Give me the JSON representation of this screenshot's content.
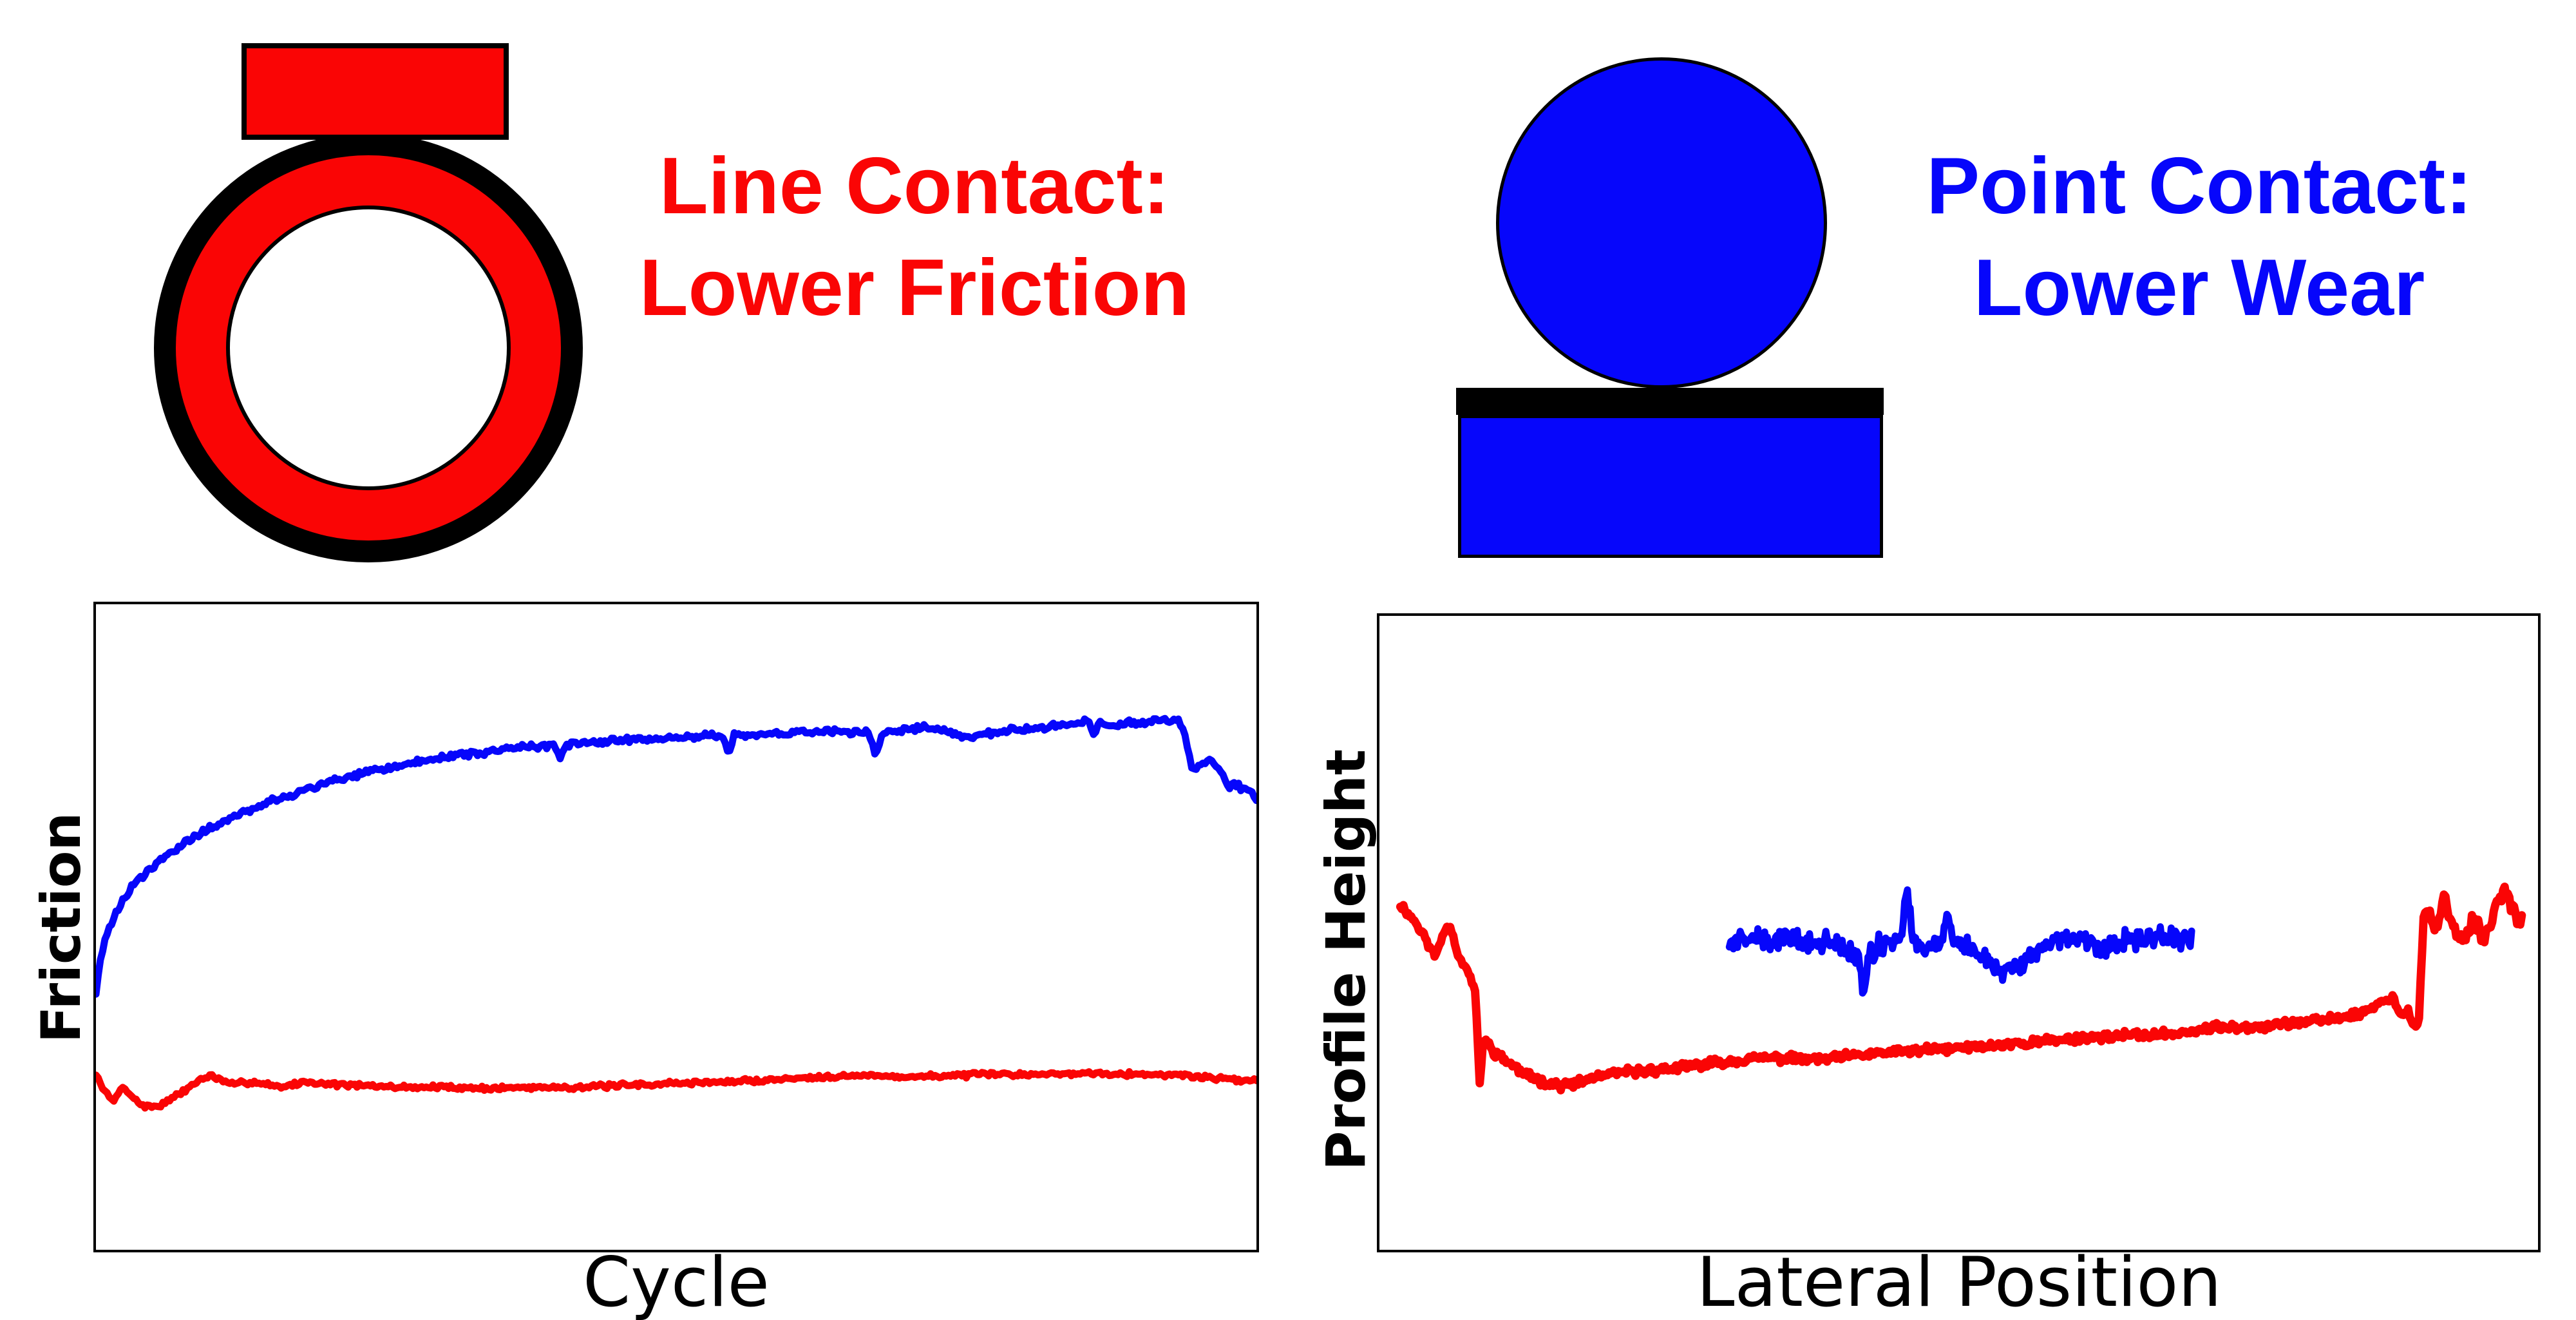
{
  "colors": {
    "red": "#fa0505",
    "blue": "#0606fb",
    "black": "#000000"
  },
  "schematics": {
    "line_contact": {
      "label_line1": "Line Contact:",
      "label_line2": "Lower Friction",
      "shapes": [
        "red-counterface-block",
        "red-ring-with-black-rim",
        "white-ring-bore"
      ]
    },
    "point_contact": {
      "label_line1": "Point Contact:",
      "label_line2": "Lower Wear",
      "shapes": [
        "blue-ball",
        "black-contact-line",
        "blue-counterface-block"
      ]
    }
  },
  "chart_data": [
    {
      "id": "friction-vs-cycle",
      "type": "line",
      "title": "",
      "xlabel": "Cycle",
      "ylabel": "Friction",
      "xlim": [
        0,
        1
      ],
      "ylim": [
        0,
        1
      ],
      "grid": false,
      "ticks": false,
      "legend": null,
      "series": [
        {
          "name": "point-contact-friction",
          "color_key": "blue",
          "stroke_width": 11,
          "samples": 520,
          "noise_amp": 0.006,
          "seed": 42,
          "anchors": [
            [
              0.0,
              0.4
            ],
            [
              0.004,
              0.455
            ],
            [
              0.012,
              0.5
            ],
            [
              0.02,
              0.53
            ],
            [
              0.03,
              0.56
            ],
            [
              0.045,
              0.588
            ],
            [
              0.06,
              0.61
            ],
            [
              0.08,
              0.634
            ],
            [
              0.1,
              0.655
            ],
            [
              0.13,
              0.679
            ],
            [
              0.16,
              0.7
            ],
            [
              0.2,
              0.724
            ],
            [
              0.24,
              0.742
            ],
            [
              0.28,
              0.757
            ],
            [
              0.32,
              0.768
            ],
            [
              0.36,
              0.777
            ],
            [
              0.4,
              0.783
            ],
            [
              0.44,
              0.788
            ],
            [
              0.48,
              0.791
            ],
            [
              0.52,
              0.795
            ],
            [
              0.56,
              0.797
            ],
            [
              0.6,
              0.801
            ],
            [
              0.64,
              0.803
            ],
            [
              0.67,
              0.8
            ],
            [
              0.7,
              0.806
            ],
            [
              0.72,
              0.809
            ],
            [
              0.74,
              0.8
            ],
            [
              0.752,
              0.794
            ],
            [
              0.77,
              0.801
            ],
            [
              0.8,
              0.806
            ],
            [
              0.82,
              0.81
            ],
            [
              0.84,
              0.814
            ],
            [
              0.858,
              0.819
            ],
            [
              0.875,
              0.812
            ],
            [
              0.89,
              0.816
            ],
            [
              0.905,
              0.818
            ],
            [
              0.92,
              0.821
            ],
            [
              0.933,
              0.818
            ],
            [
              0.938,
              0.8
            ],
            [
              0.944,
              0.746
            ],
            [
              0.952,
              0.75
            ],
            [
              0.96,
              0.757
            ],
            [
              0.967,
              0.75
            ],
            [
              0.972,
              0.732
            ],
            [
              0.976,
              0.718
            ],
            [
              0.982,
              0.722
            ],
            [
              0.988,
              0.714
            ],
            [
              0.994,
              0.71
            ],
            [
              1.0,
              0.7
            ]
          ],
          "spikes": [
            {
              "x": 0.4,
              "dv": -0.02,
              "w": 0.006
            },
            {
              "x": 0.545,
              "dv": -0.03,
              "w": 0.005
            },
            {
              "x": 0.672,
              "dv": -0.034,
              "w": 0.006
            },
            {
              "x": 0.86,
              "dv": -0.022,
              "w": 0.004
            }
          ]
        },
        {
          "name": "line-contact-friction",
          "color_key": "red",
          "stroke_width": 11,
          "samples": 520,
          "noise_amp": 0.0045,
          "seed": 7,
          "anchors": [
            [
              0.0,
              0.27
            ],
            [
              0.008,
              0.245
            ],
            [
              0.015,
              0.228
            ],
            [
              0.022,
              0.252
            ],
            [
              0.028,
              0.245
            ],
            [
              0.035,
              0.23
            ],
            [
              0.042,
              0.222
            ],
            [
              0.052,
              0.222
            ],
            [
              0.062,
              0.23
            ],
            [
              0.075,
              0.245
            ],
            [
              0.088,
              0.262
            ],
            [
              0.098,
              0.27
            ],
            [
              0.108,
              0.262
            ],
            [
              0.117,
              0.256
            ],
            [
              0.13,
              0.26
            ],
            [
              0.145,
              0.258
            ],
            [
              0.16,
              0.252
            ],
            [
              0.18,
              0.26
            ],
            [
              0.2,
              0.257
            ],
            [
              0.23,
              0.254
            ],
            [
              0.26,
              0.252
            ],
            [
              0.3,
              0.252
            ],
            [
              0.34,
              0.25
            ],
            [
              0.38,
              0.252
            ],
            [
              0.42,
              0.252
            ],
            [
              0.46,
              0.255
            ],
            [
              0.5,
              0.258
            ],
            [
              0.54,
              0.26
            ],
            [
              0.58,
              0.263
            ],
            [
              0.62,
              0.268
            ],
            [
              0.66,
              0.27
            ],
            [
              0.7,
              0.268
            ],
            [
              0.74,
              0.27
            ],
            [
              0.78,
              0.272
            ],
            [
              0.82,
              0.272
            ],
            [
              0.86,
              0.274
            ],
            [
              0.9,
              0.272
            ],
            [
              0.94,
              0.27
            ],
            [
              0.97,
              0.265
            ],
            [
              1.0,
              0.262
            ]
          ],
          "spikes": []
        }
      ]
    },
    {
      "id": "profile-vs-lateral",
      "type": "line",
      "title": "",
      "xlabel": "Lateral Position",
      "ylabel": "Profile Height",
      "xlim": [
        0,
        1
      ],
      "ylim": [
        0,
        1
      ],
      "grid": false,
      "ticks": false,
      "legend": null,
      "series": [
        {
          "name": "line-contact-wear-profile",
          "color_key": "red",
          "stroke_width": 13,
          "samples": 720,
          "noise_amp": 0.008,
          "noise_segments": [
            {
              "from": 0.0,
              "to": 0.897,
              "amp": 0.008
            },
            {
              "from": 0.897,
              "to": 1.0,
              "amp": 0.018
            }
          ],
          "seed": 11,
          "anchors": [
            [
              0.018,
              0.545
            ],
            [
              0.025,
              0.53
            ],
            [
              0.032,
              0.515
            ],
            [
              0.04,
              0.49
            ],
            [
              0.048,
              0.462
            ],
            [
              0.055,
              0.5
            ],
            [
              0.061,
              0.513
            ],
            [
              0.067,
              0.47
            ],
            [
              0.073,
              0.448
            ],
            [
              0.079,
              0.43
            ],
            [
              0.083,
              0.4
            ],
            [
              0.0865,
              0.263
            ],
            [
              0.0895,
              0.33
            ],
            [
              0.094,
              0.325
            ],
            [
              0.1,
              0.31
            ],
            [
              0.11,
              0.298
            ],
            [
              0.125,
              0.277
            ],
            [
              0.14,
              0.266
            ],
            [
              0.155,
              0.259
            ],
            [
              0.17,
              0.262
            ],
            [
              0.185,
              0.272
            ],
            [
              0.21,
              0.28
            ],
            [
              0.25,
              0.285
            ],
            [
              0.29,
              0.295
            ],
            [
              0.33,
              0.303
            ],
            [
              0.38,
              0.3
            ],
            [
              0.43,
              0.31
            ],
            [
              0.48,
              0.316
            ],
            [
              0.53,
              0.322
            ],
            [
              0.58,
              0.33
            ],
            [
              0.63,
              0.337
            ],
            [
              0.68,
              0.34
            ],
            [
              0.72,
              0.35
            ],
            [
              0.76,
              0.353
            ],
            [
              0.8,
              0.36
            ],
            [
              0.83,
              0.366
            ],
            [
              0.845,
              0.372
            ],
            [
              0.86,
              0.385
            ],
            [
              0.874,
              0.4
            ],
            [
              0.882,
              0.37
            ],
            [
              0.888,
              0.376
            ],
            [
              0.893,
              0.348
            ],
            [
              0.897,
              0.36
            ],
            [
              0.901,
              0.52
            ],
            [
              0.907,
              0.53
            ],
            [
              0.913,
              0.5
            ],
            [
              0.919,
              0.56
            ],
            [
              0.925,
              0.52
            ],
            [
              0.931,
              0.482
            ],
            [
              0.938,
              0.5
            ],
            [
              0.945,
              0.523
            ],
            [
              0.952,
              0.49
            ],
            [
              0.958,
              0.512
            ],
            [
              0.965,
              0.55
            ],
            [
              0.97,
              0.568
            ],
            [
              0.975,
              0.55
            ],
            [
              0.979,
              0.543
            ],
            [
              0.983,
              0.52
            ],
            [
              0.986,
              0.523
            ]
          ],
          "spikes": []
        },
        {
          "name": "point-contact-wear-profile",
          "color_key": "blue",
          "stroke_width": 11,
          "samples": 340,
          "noise_amp": 0.02,
          "seed": 99,
          "anchors": [
            [
              0.302,
              0.487
            ],
            [
              0.32,
              0.49
            ],
            [
              0.34,
              0.485
            ],
            [
              0.355,
              0.495
            ],
            [
              0.37,
              0.48
            ],
            [
              0.385,
              0.49
            ],
            [
              0.4,
              0.475
            ],
            [
              0.418,
              0.46
            ],
            [
              0.43,
              0.48
            ],
            [
              0.445,
              0.49
            ],
            [
              0.455,
              0.5
            ],
            [
              0.47,
              0.48
            ],
            [
              0.485,
              0.49
            ],
            [
              0.5,
              0.485
            ],
            [
              0.515,
              0.47
            ],
            [
              0.53,
              0.447
            ],
            [
              0.545,
              0.44
            ],
            [
              0.558,
              0.455
            ],
            [
              0.572,
              0.478
            ],
            [
              0.585,
              0.49
            ],
            [
              0.6,
              0.495
            ],
            [
              0.615,
              0.485
            ],
            [
              0.63,
              0.478
            ],
            [
              0.645,
              0.49
            ],
            [
              0.66,
              0.487
            ],
            [
              0.675,
              0.495
            ],
            [
              0.69,
              0.49
            ],
            [
              0.701,
              0.493
            ]
          ],
          "spikes": [
            {
              "x": 0.418,
              "dv": -0.07,
              "w": 0.004
            },
            {
              "x": 0.455,
              "dv": 0.065,
              "w": 0.005
            },
            {
              "x": 0.49,
              "dv": 0.045,
              "w": 0.004
            }
          ]
        }
      ]
    }
  ]
}
